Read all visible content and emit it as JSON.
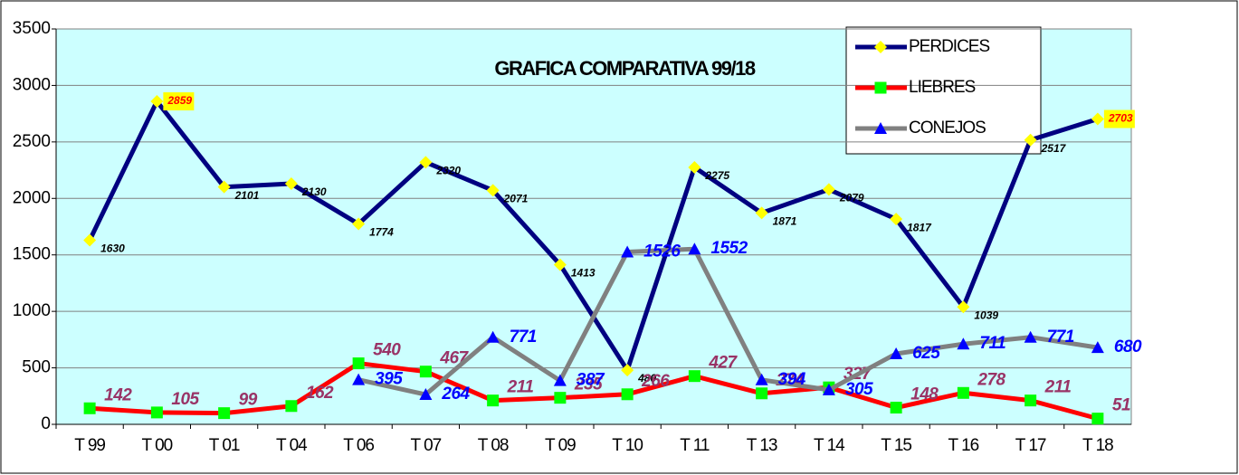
{
  "chart_data": {
    "type": "line",
    "title": "GRAFICA COMPARATIVA  99/18",
    "categories": [
      "T 99",
      "T 00",
      "T 01",
      "T 04",
      "T 06",
      "T 07",
      "T 08",
      "T 09",
      "T 10",
      "T 11",
      "T 13",
      "T 14",
      "T 15",
      "T 16",
      "T 17",
      "T 18"
    ],
    "series": [
      {
        "name": "PERDICES",
        "color": "#000080",
        "marker_color": "#ffff00",
        "values": [
          1630,
          2859,
          2101,
          2130,
          1774,
          2320,
          2071,
          1413,
          480,
          2275,
          1871,
          2079,
          1817,
          1039,
          2517,
          2703
        ]
      },
      {
        "name": "LIEBRES",
        "color": "#ff0000",
        "marker_color": "#00ff00",
        "values": [
          142,
          105,
          99,
          162,
          540,
          467,
          211,
          235,
          266,
          427,
          274,
          327,
          148,
          278,
          211,
          51
        ]
      },
      {
        "name": "CONEJOS",
        "color": "#808080",
        "marker_color": "#0000ff",
        "values": [
          null,
          null,
          null,
          null,
          395,
          264,
          771,
          387,
          1526,
          1552,
          394,
          305,
          625,
          711,
          771,
          680
        ]
      }
    ],
    "ylim": [
      0,
      3500
    ],
    "yticks": [
      0,
      500,
      1000,
      1500,
      2000,
      2500,
      3000,
      3500
    ],
    "grid": true,
    "legend": "top-right"
  }
}
